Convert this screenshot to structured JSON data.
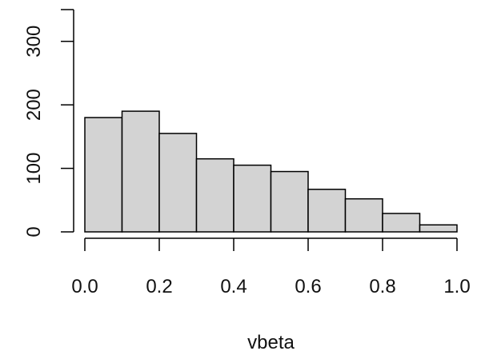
{
  "chart_data": {
    "type": "bar",
    "title": "",
    "xlabel": "vbeta",
    "ylabel": "",
    "bin_edges": [
      0.0,
      0.1,
      0.2,
      0.3,
      0.4,
      0.5,
      0.6,
      0.7,
      0.8,
      0.9,
      1.0
    ],
    "values": [
      180,
      190,
      155,
      115,
      105,
      95,
      67,
      52,
      29,
      11
    ],
    "xlim": [
      0.0,
      1.0
    ],
    "ylim": [
      0,
      350
    ],
    "x_ticks": [
      "0.0",
      "0.2",
      "0.4",
      "0.6",
      "0.8",
      "1.0"
    ],
    "x_tick_values": [
      0.0,
      0.2,
      0.4,
      0.6,
      0.8,
      1.0
    ],
    "y_ticks": [
      "0",
      "100",
      "200",
      "300"
    ],
    "y_tick_values": [
      0,
      100,
      200,
      300
    ],
    "y_axis_max": 350,
    "bar_fill": "#d3d3d3",
    "grid": false,
    "legend": "none"
  }
}
